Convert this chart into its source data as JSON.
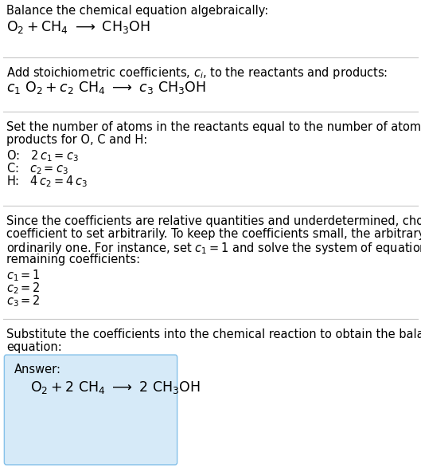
{
  "bg_color": "#ffffff",
  "text_color": "#000000",
  "box_facecolor": "#d6eaf8",
  "box_edgecolor": "#85c1e9",
  "sep_color": "#c8c8c8",
  "fs_body": 10.5,
  "fs_eq": 12.5,
  "fig_width": 5.29,
  "fig_height": 5.87,
  "dpi": 100,
  "sec1_title": "Balance the chemical equation algebraically:",
  "sec1_eq": "$\\mathrm{O_2 + CH_4 \\ {\\longrightarrow} \\ CH_3OH}$",
  "sec2_title": "Add stoichiometric coefficients, $c_i$, to the reactants and products:",
  "sec2_eq": "$c_1\\ \\mathrm{O_2} + c_2\\ \\mathrm{CH_4} \\ {\\longrightarrow} \\ c_3\\ \\mathrm{CH_3OH}$",
  "sec3_line1": "Set the number of atoms in the reactants equal to the number of atoms in the",
  "sec3_line2": "products for O, C and H:",
  "sec3_O": "O:   $2\\,c_1 = c_3$",
  "sec3_C": "C:   $c_2 = c_3$",
  "sec3_H": "H:   $4\\,c_2 = 4\\,c_3$",
  "sec4_line1": "Since the coefficients are relative quantities and underdetermined, choose a",
  "sec4_line2": "coefficient to set arbitrarily. To keep the coefficients small, the arbitrary value is",
  "sec4_line3": "ordinarily one. For instance, set $c_1 = 1$ and solve the system of equations for the",
  "sec4_line4": "remaining coefficients:",
  "sec4_c1": "$c_1 = 1$",
  "sec4_c2": "$c_2 = 2$",
  "sec4_c3": "$c_3 = 2$",
  "sec5_line1": "Substitute the coefficients into the chemical reaction to obtain the balanced",
  "sec5_line2": "equation:",
  "answer_label": "Answer:",
  "answer_eq": "$\\mathrm{O_2 + 2\\ CH_4 \\ {\\longrightarrow} \\ 2\\ CH_3OH}$"
}
